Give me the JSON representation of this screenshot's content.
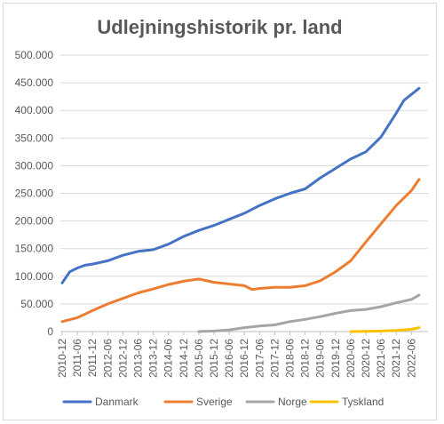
{
  "chart_data": {
    "type": "line",
    "title": "Udlejningshistorik pr. land",
    "xlabel": "",
    "ylabel": "",
    "ylim": [
      0,
      500000
    ],
    "y_ticks": [
      "0",
      "50.000",
      "100.000",
      "150.000",
      "200.000",
      "250.000",
      "300.000",
      "350.000",
      "400.000",
      "450.000",
      "500.000"
    ],
    "x_ticks": [
      "2010-12",
      "2011-06",
      "2011-12",
      "2012-06",
      "2012-12",
      "2013-06",
      "2013-12",
      "2014-06",
      "2014-12",
      "2015-06",
      "2015-12",
      "2016-06",
      "2016-12",
      "2017-06",
      "2017-12",
      "2018-06",
      "2018-12",
      "2019-06",
      "2019-12",
      "2020-06",
      "2020-12",
      "2021-06",
      "2021-12",
      "2022-06"
    ],
    "grid": true,
    "legend_position": "bottom",
    "series": [
      {
        "name": "Danmark",
        "color": "#4472c4",
        "points": [
          [
            "2010-12",
            88000
          ],
          [
            "2011-03",
            108000
          ],
          [
            "2011-06",
            115000
          ],
          [
            "2011-09",
            120000
          ],
          [
            "2011-12",
            122000
          ],
          [
            "2012-06",
            128000
          ],
          [
            "2012-12",
            138000
          ],
          [
            "2013-06",
            145000
          ],
          [
            "2013-12",
            148000
          ],
          [
            "2014-06",
            158000
          ],
          [
            "2014-12",
            172000
          ],
          [
            "2015-06",
            183000
          ],
          [
            "2015-12",
            192000
          ],
          [
            "2016-06",
            203000
          ],
          [
            "2016-12",
            214000
          ],
          [
            "2017-06",
            228000
          ],
          [
            "2017-12",
            240000
          ],
          [
            "2018-06",
            250000
          ],
          [
            "2018-12",
            258000
          ],
          [
            "2019-06",
            278000
          ],
          [
            "2019-12",
            295000
          ],
          [
            "2020-06",
            312000
          ],
          [
            "2020-12",
            325000
          ],
          [
            "2021-06",
            352000
          ],
          [
            "2021-12",
            395000
          ],
          [
            "2022-03",
            418000
          ],
          [
            "2022-09",
            440000
          ]
        ]
      },
      {
        "name": "Sverige",
        "color": "#ed7d31",
        "points": [
          [
            "2010-12",
            18000
          ],
          [
            "2011-06",
            25000
          ],
          [
            "2011-12",
            38000
          ],
          [
            "2012-06",
            50000
          ],
          [
            "2012-12",
            60000
          ],
          [
            "2013-06",
            70000
          ],
          [
            "2013-12",
            77000
          ],
          [
            "2014-06",
            85000
          ],
          [
            "2014-12",
            91000
          ],
          [
            "2015-06",
            95000
          ],
          [
            "2015-12",
            89000
          ],
          [
            "2016-06",
            86000
          ],
          [
            "2016-12",
            83000
          ],
          [
            "2017-03",
            76000
          ],
          [
            "2017-06",
            78000
          ],
          [
            "2017-12",
            80000
          ],
          [
            "2018-06",
            80000
          ],
          [
            "2018-12",
            83000
          ],
          [
            "2019-06",
            92000
          ],
          [
            "2019-12",
            108000
          ],
          [
            "2020-06",
            128000
          ],
          [
            "2020-12",
            162000
          ],
          [
            "2021-06",
            195000
          ],
          [
            "2021-12",
            228000
          ],
          [
            "2022-06",
            255000
          ],
          [
            "2022-09",
            275000
          ]
        ]
      },
      {
        "name": "Norge",
        "color": "#a5a5a5",
        "points": [
          [
            "2015-06",
            0
          ],
          [
            "2015-12",
            1000
          ],
          [
            "2016-06",
            3000
          ],
          [
            "2016-12",
            7000
          ],
          [
            "2017-06",
            10000
          ],
          [
            "2017-12",
            12000
          ],
          [
            "2018-06",
            18000
          ],
          [
            "2018-12",
            22000
          ],
          [
            "2019-06",
            27000
          ],
          [
            "2019-12",
            33000
          ],
          [
            "2020-06",
            38000
          ],
          [
            "2020-12",
            40000
          ],
          [
            "2021-06",
            45000
          ],
          [
            "2021-12",
            52000
          ],
          [
            "2022-06",
            58000
          ],
          [
            "2022-09",
            66000
          ]
        ]
      },
      {
        "name": "Tyskland",
        "color": "#ffc000",
        "points": [
          [
            "2020-06",
            0
          ],
          [
            "2020-12",
            500
          ],
          [
            "2021-06",
            1000
          ],
          [
            "2021-12",
            2000
          ],
          [
            "2022-06",
            4000
          ],
          [
            "2022-09",
            7000
          ]
        ]
      }
    ]
  }
}
